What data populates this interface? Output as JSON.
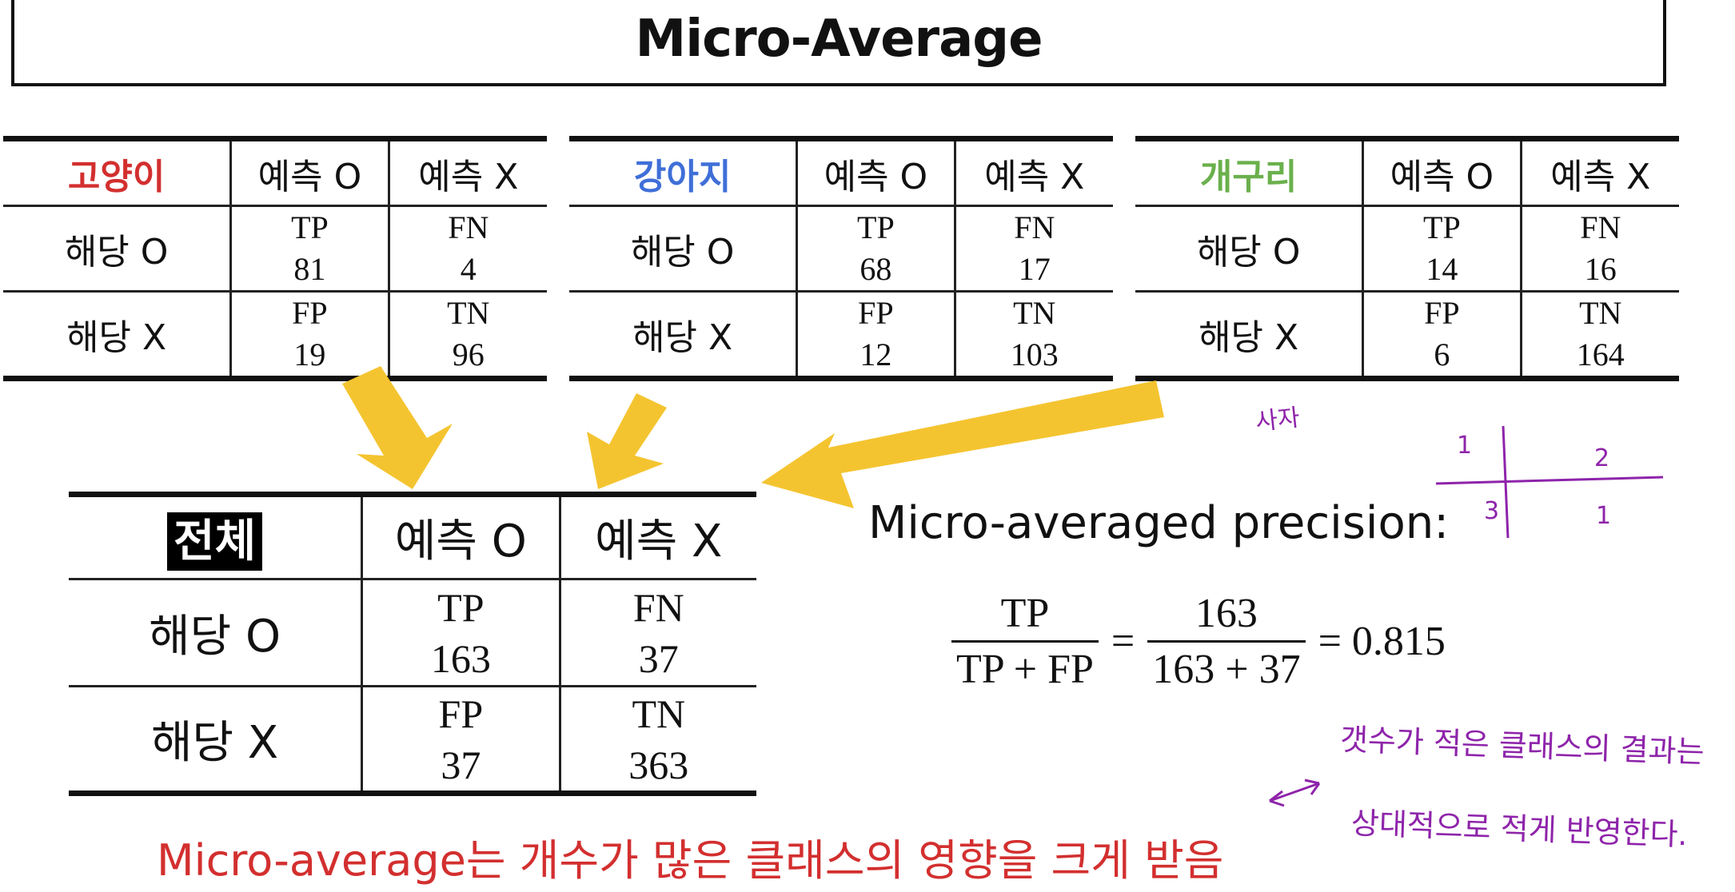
{
  "title": "Micro-Average",
  "labels": {
    "pred_o": "예측 O",
    "pred_x": "예측 X",
    "actual_o": "해당 O",
    "actual_x": "해당 X"
  },
  "classes": [
    {
      "name": "고양이",
      "color": "#d32f2f",
      "tp": "81",
      "fn": "4",
      "fp": "19",
      "tn": "96"
    },
    {
      "name": "강아지",
      "color": "#3f6fd8",
      "tp": "68",
      "fn": "17",
      "fp": "12",
      "tn": "103"
    },
    {
      "name": "개구리",
      "color": "#6ab04c",
      "tp": "14",
      "fn": "16",
      "fp": "6",
      "tn": "164"
    }
  ],
  "cell_tags": {
    "tp": "TP",
    "fn": "FN",
    "fp": "FP",
    "tn": "TN"
  },
  "total": {
    "name": "전체",
    "tp": "163",
    "fn": "37",
    "fp": "37",
    "tn": "363"
  },
  "precision": {
    "title": "Micro-averaged precision:",
    "num1": "TP",
    "den1": "TP + FP",
    "num2": "163",
    "den2": "163 + 37",
    "result": "= 0.815"
  },
  "note": "Micro-average는 개수가 많은 클래스의 영향을 크게 받음",
  "handwriting": {
    "lion": "사자",
    "grid": [
      "1",
      "2",
      "3",
      "1"
    ],
    "line1": "갯수가 적은 클래스의 결과는",
    "line2": "상대적으로 적게 반영한다."
  },
  "arrow_color": "#f4c430"
}
